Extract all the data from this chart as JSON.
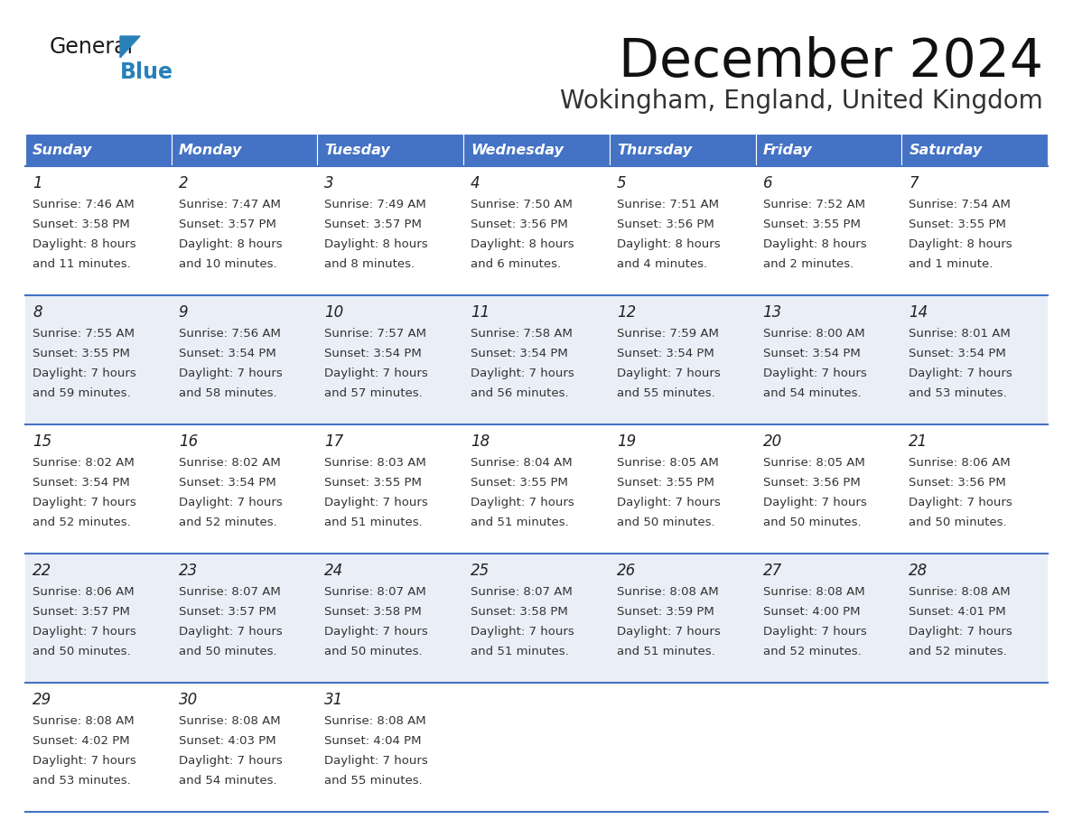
{
  "title": "December 2024",
  "subtitle": "Wokingham, England, United Kingdom",
  "header_bg": "#4472C4",
  "header_text_color": "#FFFFFF",
  "row_bg_light": "#FFFFFF",
  "row_bg_dark": "#EAEFF7",
  "border_color": "#4472C4",
  "text_color": "#333333",
  "days_of_week": [
    "Sunday",
    "Monday",
    "Tuesday",
    "Wednesday",
    "Thursday",
    "Friday",
    "Saturday"
  ],
  "weeks": [
    [
      {
        "day": 1,
        "sunrise": "7:46 AM",
        "sunset": "3:58 PM",
        "daylight_line1": "Daylight: 8 hours",
        "daylight_line2": "and 11 minutes."
      },
      {
        "day": 2,
        "sunrise": "7:47 AM",
        "sunset": "3:57 PM",
        "daylight_line1": "Daylight: 8 hours",
        "daylight_line2": "and 10 minutes."
      },
      {
        "day": 3,
        "sunrise": "7:49 AM",
        "sunset": "3:57 PM",
        "daylight_line1": "Daylight: 8 hours",
        "daylight_line2": "and 8 minutes."
      },
      {
        "day": 4,
        "sunrise": "7:50 AM",
        "sunset": "3:56 PM",
        "daylight_line1": "Daylight: 8 hours",
        "daylight_line2": "and 6 minutes."
      },
      {
        "day": 5,
        "sunrise": "7:51 AM",
        "sunset": "3:56 PM",
        "daylight_line1": "Daylight: 8 hours",
        "daylight_line2": "and 4 minutes."
      },
      {
        "day": 6,
        "sunrise": "7:52 AM",
        "sunset": "3:55 PM",
        "daylight_line1": "Daylight: 8 hours",
        "daylight_line2": "and 2 minutes."
      },
      {
        "day": 7,
        "sunrise": "7:54 AM",
        "sunset": "3:55 PM",
        "daylight_line1": "Daylight: 8 hours",
        "daylight_line2": "and 1 minute."
      }
    ],
    [
      {
        "day": 8,
        "sunrise": "7:55 AM",
        "sunset": "3:55 PM",
        "daylight_line1": "Daylight: 7 hours",
        "daylight_line2": "and 59 minutes."
      },
      {
        "day": 9,
        "sunrise": "7:56 AM",
        "sunset": "3:54 PM",
        "daylight_line1": "Daylight: 7 hours",
        "daylight_line2": "and 58 minutes."
      },
      {
        "day": 10,
        "sunrise": "7:57 AM",
        "sunset": "3:54 PM",
        "daylight_line1": "Daylight: 7 hours",
        "daylight_line2": "and 57 minutes."
      },
      {
        "day": 11,
        "sunrise": "7:58 AM",
        "sunset": "3:54 PM",
        "daylight_line1": "Daylight: 7 hours",
        "daylight_line2": "and 56 minutes."
      },
      {
        "day": 12,
        "sunrise": "7:59 AM",
        "sunset": "3:54 PM",
        "daylight_line1": "Daylight: 7 hours",
        "daylight_line2": "and 55 minutes."
      },
      {
        "day": 13,
        "sunrise": "8:00 AM",
        "sunset": "3:54 PM",
        "daylight_line1": "Daylight: 7 hours",
        "daylight_line2": "and 54 minutes."
      },
      {
        "day": 14,
        "sunrise": "8:01 AM",
        "sunset": "3:54 PM",
        "daylight_line1": "Daylight: 7 hours",
        "daylight_line2": "and 53 minutes."
      }
    ],
    [
      {
        "day": 15,
        "sunrise": "8:02 AM",
        "sunset": "3:54 PM",
        "daylight_line1": "Daylight: 7 hours",
        "daylight_line2": "and 52 minutes."
      },
      {
        "day": 16,
        "sunrise": "8:02 AM",
        "sunset": "3:54 PM",
        "daylight_line1": "Daylight: 7 hours",
        "daylight_line2": "and 52 minutes."
      },
      {
        "day": 17,
        "sunrise": "8:03 AM",
        "sunset": "3:55 PM",
        "daylight_line1": "Daylight: 7 hours",
        "daylight_line2": "and 51 minutes."
      },
      {
        "day": 18,
        "sunrise": "8:04 AM",
        "sunset": "3:55 PM",
        "daylight_line1": "Daylight: 7 hours",
        "daylight_line2": "and 51 minutes."
      },
      {
        "day": 19,
        "sunrise": "8:05 AM",
        "sunset": "3:55 PM",
        "daylight_line1": "Daylight: 7 hours",
        "daylight_line2": "and 50 minutes."
      },
      {
        "day": 20,
        "sunrise": "8:05 AM",
        "sunset": "3:56 PM",
        "daylight_line1": "Daylight: 7 hours",
        "daylight_line2": "and 50 minutes."
      },
      {
        "day": 21,
        "sunrise": "8:06 AM",
        "sunset": "3:56 PM",
        "daylight_line1": "Daylight: 7 hours",
        "daylight_line2": "and 50 minutes."
      }
    ],
    [
      {
        "day": 22,
        "sunrise": "8:06 AM",
        "sunset": "3:57 PM",
        "daylight_line1": "Daylight: 7 hours",
        "daylight_line2": "and 50 minutes."
      },
      {
        "day": 23,
        "sunrise": "8:07 AM",
        "sunset": "3:57 PM",
        "daylight_line1": "Daylight: 7 hours",
        "daylight_line2": "and 50 minutes."
      },
      {
        "day": 24,
        "sunrise": "8:07 AM",
        "sunset": "3:58 PM",
        "daylight_line1": "Daylight: 7 hours",
        "daylight_line2": "and 50 minutes."
      },
      {
        "day": 25,
        "sunrise": "8:07 AM",
        "sunset": "3:58 PM",
        "daylight_line1": "Daylight: 7 hours",
        "daylight_line2": "and 51 minutes."
      },
      {
        "day": 26,
        "sunrise": "8:08 AM",
        "sunset": "3:59 PM",
        "daylight_line1": "Daylight: 7 hours",
        "daylight_line2": "and 51 minutes."
      },
      {
        "day": 27,
        "sunrise": "8:08 AM",
        "sunset": "4:00 PM",
        "daylight_line1": "Daylight: 7 hours",
        "daylight_line2": "and 52 minutes."
      },
      {
        "day": 28,
        "sunrise": "8:08 AM",
        "sunset": "4:01 PM",
        "daylight_line1": "Daylight: 7 hours",
        "daylight_line2": "and 52 minutes."
      }
    ],
    [
      {
        "day": 29,
        "sunrise": "8:08 AM",
        "sunset": "4:02 PM",
        "daylight_line1": "Daylight: 7 hours",
        "daylight_line2": "and 53 minutes."
      },
      {
        "day": 30,
        "sunrise": "8:08 AM",
        "sunset": "4:03 PM",
        "daylight_line1": "Daylight: 7 hours",
        "daylight_line2": "and 54 minutes."
      },
      {
        "day": 31,
        "sunrise": "8:08 AM",
        "sunset": "4:04 PM",
        "daylight_line1": "Daylight: 7 hours",
        "daylight_line2": "and 55 minutes."
      },
      null,
      null,
      null,
      null
    ]
  ],
  "logo_color_general": "#1a1a1a",
  "logo_color_blue": "#2980B9",
  "logo_triangle_color": "#2980B9"
}
